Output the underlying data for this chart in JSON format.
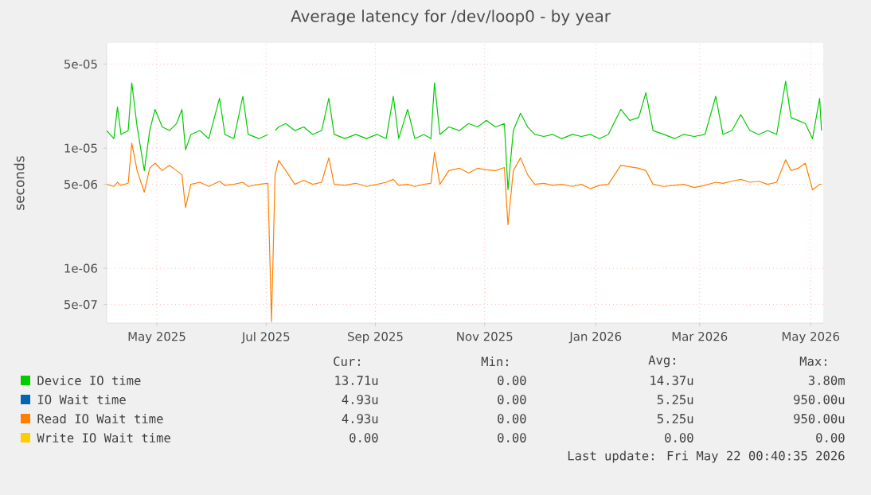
{
  "chart_data": {
    "type": "line",
    "title": "Average latency for /dev/loop0 - by year",
    "ylabel": "seconds",
    "log": "y",
    "grid": true,
    "legend": "bottom",
    "marker": "none",
    "line_style": "solid",
    "xlim": [
      "2025-04-18",
      "2026-05-23"
    ],
    "ylim": [
      3.5e-07,
      7.5e-05
    ],
    "xticks": [
      {
        "value": "2025-05-16",
        "label": "May 2025"
      },
      {
        "value": "2025-07-16",
        "label": "Jul 2025"
      },
      {
        "value": "2025-09-15",
        "label": "Sep 2025"
      },
      {
        "value": "2025-11-15",
        "label": "Nov 2025"
      },
      {
        "value": "2026-01-16",
        "label": "Jan 2026"
      },
      {
        "value": "2026-03-15",
        "label": "Mar 2026"
      },
      {
        "value": "2026-05-16",
        "label": "May 2026"
      }
    ],
    "yticks": [
      {
        "value": 5e-07,
        "label": "5e-07"
      },
      {
        "value": 1e-06,
        "label": "1e-06"
      },
      {
        "value": 5e-06,
        "label": "5e-06"
      },
      {
        "value": 1e-05,
        "label": "1e-05"
      },
      {
        "value": 5e-05,
        "label": "5e-05"
      }
    ],
    "x": [
      "2025-04-18",
      "2025-04-22",
      "2025-04-24",
      "2025-04-26",
      "2025-04-30",
      "2025-05-02",
      "2025-05-05",
      "2025-05-09",
      "2025-05-12",
      "2025-05-15",
      "2025-05-19",
      "2025-05-23",
      "2025-05-27",
      "2025-05-30",
      "2025-06-01",
      "2025-06-04",
      "2025-06-09",
      "2025-06-14",
      "2025-06-20",
      "2025-06-23",
      "2025-06-28",
      "2025-07-03",
      "2025-07-06",
      "2025-07-12",
      "2025-07-17",
      "2025-07-19",
      "2025-07-21",
      "2025-07-23",
      "2025-07-27",
      "2025-08-01",
      "2025-08-06",
      "2025-08-11",
      "2025-08-16",
      "2025-08-20",
      "2025-08-23",
      "2025-08-29",
      "2025-09-04",
      "2025-09-10",
      "2025-09-16",
      "2025-09-21",
      "2025-09-25",
      "2025-09-28",
      "2025-10-03",
      "2025-10-07",
      "2025-10-12",
      "2025-10-16",
      "2025-10-18",
      "2025-10-21",
      "2025-10-26",
      "2025-11-01",
      "2025-11-06",
      "2025-11-11",
      "2025-11-16",
      "2025-11-21",
      "2025-11-26",
      "2025-11-28",
      "2025-12-01",
      "2025-12-05",
      "2025-12-09",
      "2025-12-13",
      "2025-12-18",
      "2025-12-23",
      "2025-12-28",
      "2026-01-03",
      "2026-01-08",
      "2026-01-13",
      "2026-01-18",
      "2026-01-23",
      "2026-01-30",
      "2026-02-04",
      "2026-02-09",
      "2026-02-13",
      "2026-02-17",
      "2026-02-23",
      "2026-03-01",
      "2026-03-06",
      "2026-03-12",
      "2026-03-18",
      "2026-03-24",
      "2026-03-28",
      "2026-04-02",
      "2026-04-07",
      "2026-04-12",
      "2026-04-17",
      "2026-04-22",
      "2026-04-27",
      "2026-05-02",
      "2026-05-05",
      "2026-05-09",
      "2026-05-13",
      "2026-05-17",
      "2026-05-21",
      "2026-05-22"
    ],
    "series": [
      {
        "name": "Device IO time",
        "color": "#00cc00",
        "values": [
          1.4e-05,
          1.2e-05,
          2.2e-05,
          1.3e-05,
          1.4e-05,
          3.5e-05,
          1.5e-05,
          6.5e-06,
          1.4e-05,
          2.1e-05,
          1.5e-05,
          1.4e-05,
          1.6e-05,
          2.1e-05,
          9.7e-06,
          1.3e-05,
          1.4e-05,
          1.2e-05,
          2.6e-05,
          1.3e-05,
          1.2e-05,
          2.7e-05,
          1.3e-05,
          1.2e-05,
          1.3e-05,
          null,
          1.4e-05,
          1.5e-05,
          1.6e-05,
          1.4e-05,
          1.5e-05,
          1.3e-05,
          1.4e-05,
          2.6e-05,
          1.3e-05,
          1.2e-05,
          1.3e-05,
          1.2e-05,
          1.3e-05,
          1.2e-05,
          2.7e-05,
          1.2e-05,
          2.1e-05,
          1.2e-05,
          1.3e-05,
          1.2e-05,
          3.5e-05,
          1.3e-05,
          1.5e-05,
          1.4e-05,
          1.6e-05,
          1.5e-05,
          1.7e-05,
          1.5e-05,
          1.6e-05,
          4.5e-06,
          1.4e-05,
          1.95e-05,
          1.5e-05,
          1.3e-05,
          1.25e-05,
          1.3e-05,
          1.2e-05,
          1.3e-05,
          1.25e-05,
          1.3e-05,
          1.2e-05,
          1.3e-05,
          2.1e-05,
          1.7e-05,
          1.8e-05,
          2.9e-05,
          1.4e-05,
          1.3e-05,
          1.2e-05,
          1.3e-05,
          1.25e-05,
          1.3e-05,
          2.7e-05,
          1.3e-05,
          1.4e-05,
          1.9e-05,
          1.4e-05,
          1.3e-05,
          1.4e-05,
          1.3e-05,
          3.6e-05,
          1.8e-05,
          1.7e-05,
          1.6e-05,
          1.2e-05,
          2.6e-05,
          1.4e-05
        ]
      },
      {
        "name": "IO Wait time",
        "color": "#0066b3",
        "values": [
          null,
          null,
          null,
          null,
          null,
          null,
          null,
          null,
          null,
          null,
          null,
          null,
          null,
          null,
          null,
          null,
          null,
          null,
          null,
          null,
          null,
          null,
          null,
          null,
          null,
          null,
          null,
          null,
          null,
          null,
          null,
          null,
          null,
          null,
          null,
          null,
          null,
          null,
          null,
          null,
          null,
          null,
          null,
          null,
          null,
          null,
          null,
          null,
          null,
          null,
          null,
          null,
          null,
          null,
          null,
          null,
          null,
          null,
          null,
          null,
          null,
          null,
          null,
          null,
          null,
          null,
          null,
          null,
          null,
          null,
          null,
          null,
          null,
          null,
          null,
          null,
          null,
          null,
          null,
          null,
          null,
          null,
          null,
          null,
          null,
          null,
          null,
          null,
          null,
          null,
          null,
          null,
          null
        ]
      },
      {
        "name": "Read IO Wait time",
        "color": "#ff8000",
        "values": [
          5e-06,
          4.8e-06,
          5.2e-06,
          4.9e-06,
          5.1e-06,
          1.1e-05,
          6.5e-06,
          4.3e-06,
          6.8e-06,
          7.5e-06,
          6.5e-06,
          7.2e-06,
          6.5e-06,
          6e-06,
          3.2e-06,
          5e-06,
          5.2e-06,
          4.8e-06,
          5.3e-06,
          4.9e-06,
          5e-06,
          5.2e-06,
          4.8e-06,
          5e-06,
          5.1e-06,
          3.6e-07,
          6e-06,
          7.9e-06,
          6.5e-06,
          5e-06,
          5.4e-06,
          5e-06,
          5.2e-06,
          8.3e-06,
          5e-06,
          4.9e-06,
          5.1e-06,
          4.8e-06,
          5e-06,
          5.2e-06,
          5.5e-06,
          4.9e-06,
          5e-06,
          4.8e-06,
          5e-06,
          5.1e-06,
          9.2e-06,
          5e-06,
          6.5e-06,
          6.8e-06,
          6.2e-06,
          6.8e-06,
          6.6e-06,
          6.5e-06,
          6.9e-06,
          2.3e-06,
          6.5e-06,
          8.3e-06,
          6e-06,
          5e-06,
          5.1e-06,
          4.9e-06,
          5e-06,
          4.8e-06,
          5e-06,
          4.6e-06,
          4.9e-06,
          5e-06,
          7.2e-06,
          7e-06,
          6.8e-06,
          6.5e-06,
          5e-06,
          4.8e-06,
          4.9e-06,
          5e-06,
          4.7e-06,
          4.9e-06,
          5.2e-06,
          5.1e-06,
          5.3e-06,
          5.5e-06,
          5.2e-06,
          5.3e-06,
          5e-06,
          5.2e-06,
          8e-06,
          6.5e-06,
          6.8e-06,
          7.5e-06,
          4.5e-06,
          5e-06,
          5e-06
        ]
      },
      {
        "name": "Write IO Wait time",
        "color": "#ffcc00",
        "values": [
          null,
          null,
          null,
          null,
          null,
          null,
          null,
          null,
          null,
          null,
          null,
          null,
          null,
          null,
          null,
          null,
          null,
          null,
          null,
          null,
          null,
          null,
          null,
          null,
          null,
          null,
          null,
          null,
          null,
          null,
          null,
          null,
          null,
          null,
          null,
          null,
          null,
          null,
          null,
          null,
          null,
          null,
          null,
          null,
          null,
          null,
          null,
          null,
          null,
          null,
          null,
          null,
          null,
          null,
          null,
          null,
          null,
          null,
          null,
          null,
          null,
          null,
          null,
          null,
          null,
          null,
          null,
          null,
          null,
          null,
          null,
          null,
          null,
          null,
          null,
          null,
          null,
          null,
          null,
          null,
          null,
          null,
          null,
          null,
          null,
          null,
          null,
          null,
          null,
          null,
          null,
          null,
          null
        ]
      }
    ],
    "annotations": [
      "Cur:",
      "Min:",
      "Avg:",
      "Max:",
      "13.71u",
      "0.00",
      "14.37u",
      "3.80m",
      "4.93u",
      "0.00",
      "5.25u",
      "950.00u",
      "4.93u",
      "0.00",
      "5.25u",
      "950.00u",
      "0.00",
      "0.00",
      "0.00",
      "0.00",
      "Last update: Fri May 22 00:40:35 2026"
    ]
  }
}
